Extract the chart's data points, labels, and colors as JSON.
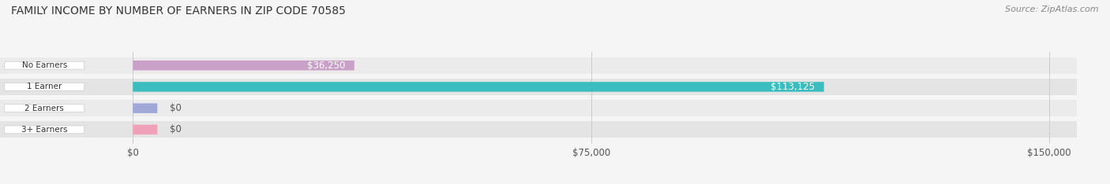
{
  "title": "FAMILY INCOME BY NUMBER OF EARNERS IN ZIP CODE 70585",
  "source": "Source: ZipAtlas.com",
  "categories": [
    "No Earners",
    "1 Earner",
    "2 Earners",
    "3+ Earners"
  ],
  "values": [
    36250,
    113125,
    0,
    0
  ],
  "bar_colors": [
    "#c9a0c8",
    "#3bbcbe",
    "#a0a8d8",
    "#f0a0b8"
  ],
  "bar_labels": [
    "$36,250",
    "$113,125",
    "$0",
    "$0"
  ],
  "xlim": [
    0,
    150000
  ],
  "xticks": [
    0,
    75000,
    150000
  ],
  "xticklabels": [
    "$0",
    "$75,000",
    "$150,000"
  ],
  "bg_color": "#f5f5f5",
  "row_bg_colors": [
    "#ebebeb",
    "#e4e4e4",
    "#ebebeb",
    "#e4e4e4"
  ],
  "title_fontsize": 10,
  "source_fontsize": 8
}
